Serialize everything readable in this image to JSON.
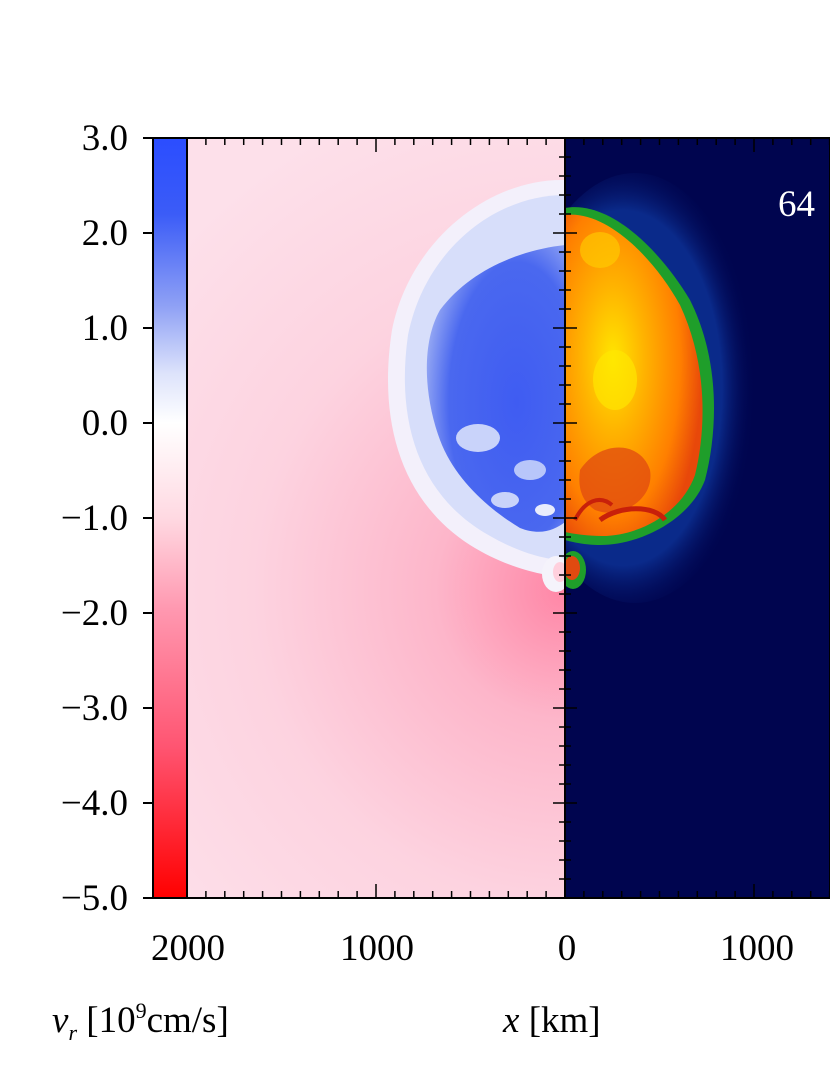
{
  "chart_data": {
    "type": "heatmap",
    "colorbar": {
      "ticks": [
        "3.0",
        "2.0",
        "1.0",
        "0.0",
        "−1.0",
        "−2.0",
        "−3.0",
        "−4.0",
        "−5.0"
      ],
      "tick_values": [
        3.0,
        2.0,
        1.0,
        0.0,
        -1.0,
        -2.0,
        -3.0,
        -4.0,
        -5.0
      ],
      "range": [
        -5.0,
        3.0
      ],
      "colors": {
        "max": "#2b4dff",
        "zero": "#ffffff",
        "min": "#ff0000"
      },
      "label_var": "v",
      "label_sub": "r",
      "label_units": " [10",
      "label_exp": "9",
      "label_tail": "cm/s]"
    },
    "x_axis": {
      "tick_labels": [
        "2000",
        "1000",
        "0",
        "1000"
      ],
      "tick_values_km": [
        -2000,
        -1000,
        0,
        1000
      ],
      "label_var": "x",
      "label_units": " [km]"
    },
    "annotation": "64",
    "left_panel": {
      "quantity": "v_r",
      "background_color": "#fdd6e4",
      "inflow_color": "#ff8aa8",
      "outflow_color": "#3a5cf0"
    },
    "right_panel": {
      "background_color": "#00054f",
      "halo_color": "#0a2a8a",
      "shock_color": "#1f9e2a",
      "interior_colors": [
        "#ff7a00",
        "#ffb000",
        "#ffe000",
        "#d42a0a"
      ]
    }
  }
}
